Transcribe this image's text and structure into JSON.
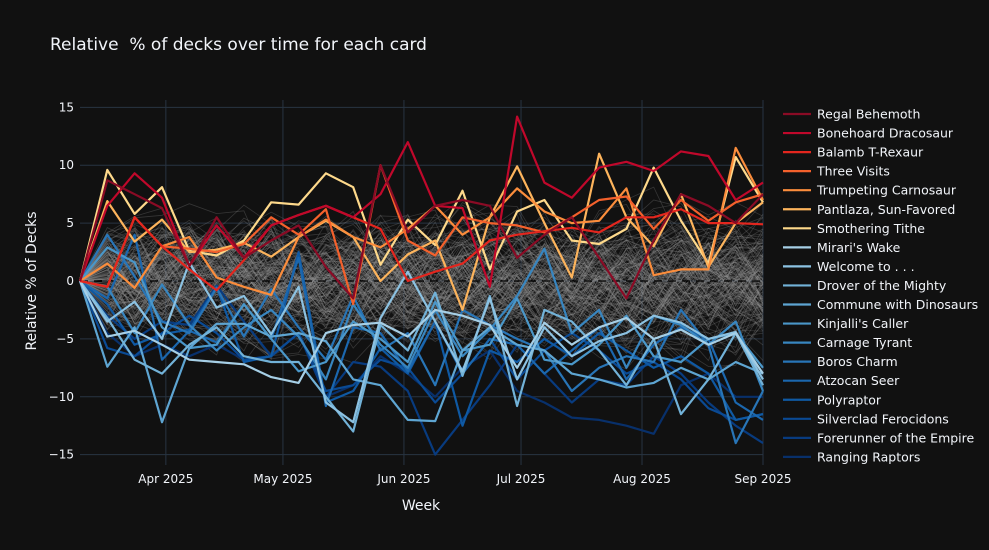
{
  "chart_data": {
    "type": "line",
    "title": "Relative  % of decks over time for each card",
    "xlabel": "Week",
    "ylabel": "Relative % of Decks",
    "ylim": [
      -16.5,
      16.5
    ],
    "xlim": [
      "2025-03-10",
      "2025-09-01"
    ],
    "yticks": [
      -15,
      -10,
      -5,
      0,
      5,
      10,
      15
    ],
    "ytick_labels": [
      "−15",
      "−10",
      "−5",
      "0",
      "5",
      "10",
      "15"
    ],
    "xticks": [
      "2025-04-01",
      "2025-05-01",
      "2025-06-01",
      "2025-07-01",
      "2025-08-01",
      "2025-09-01"
    ],
    "xtick_labels": [
      "Apr 2025",
      "May 2025",
      "Jun 2025",
      "Jul 2025",
      "Aug 2025",
      "Sep 2025"
    ],
    "grid": true,
    "zero_line": "dashed",
    "background_lines": "gray, other cards",
    "legend_placement": "right",
    "x": [
      "2025-03-10",
      "2025-03-17",
      "2025-03-24",
      "2025-03-31",
      "2025-04-07",
      "2025-04-14",
      "2025-04-21",
      "2025-04-28",
      "2025-05-05",
      "2025-05-12",
      "2025-05-19",
      "2025-05-26",
      "2025-06-02",
      "2025-06-09",
      "2025-06-16",
      "2025-06-23",
      "2025-06-30",
      "2025-07-07",
      "2025-07-14",
      "2025-07-21",
      "2025-07-28",
      "2025-08-04",
      "2025-08-11",
      "2025-08-18",
      "2025-08-25",
      "2025-09-01"
    ],
    "series": [
      {
        "name": "Regal Behemoth",
        "color": "#8a0b25",
        "values": [
          0,
          8.7,
          7.5,
          6.3,
          1.3,
          5.5,
          2.0,
          3.5,
          4.8,
          1.2,
          -1.5,
          10.0,
          4.2,
          6.5,
          7.0,
          6.5,
          2.0,
          4.0,
          5.5,
          2.0,
          -1.5,
          3.5,
          7.5,
          6.5,
          5.0,
          7.5
        ]
      },
      {
        "name": "Bonehoard Dracosaur",
        "color": "#c0082b",
        "values": [
          0,
          6.5,
          9.3,
          7.2,
          1.3,
          4.8,
          2.0,
          4.8,
          5.7,
          6.5,
          5.5,
          7.5,
          12.0,
          6.5,
          6.3,
          -0.5,
          14.2,
          8.5,
          7.2,
          9.8,
          10.3,
          9.5,
          11.2,
          10.8,
          7.0,
          8.5
        ]
      },
      {
        "name": "Balamb T-Rexaur",
        "color": "#e3261e",
        "values": [
          0,
          -0.5,
          5.5,
          3.0,
          1.0,
          -0.8,
          1.8,
          4.8,
          5.7,
          6.5,
          5.5,
          4.5,
          0.0,
          0.8,
          1.5,
          3.5,
          4.0,
          4.3,
          4.6,
          4.2,
          5.5,
          5.5,
          6.2,
          5.0,
          5.0,
          4.9
        ]
      },
      {
        "name": "Three Visits",
        "color": "#f4612c",
        "values": [
          0,
          -0.5,
          5.5,
          3.0,
          2.8,
          2.5,
          3.2,
          5.5,
          4.0,
          6.2,
          -2.0,
          10.0,
          3.5,
          2.2,
          5.5,
          5.0,
          4.8,
          4.2,
          5.5,
          7.0,
          7.3,
          4.5,
          7.0,
          5.2,
          6.8,
          7.5
        ]
      },
      {
        "name": "Trumpeting Carnosaur",
        "color": "#fb8d3c",
        "values": [
          0,
          1.5,
          -0.6,
          3.0,
          3.8,
          0.3,
          -0.5,
          -1.2,
          3.8,
          5.3,
          3.8,
          2.9,
          4.5,
          6.5,
          4.0,
          5.5,
          8.0,
          6.0,
          5.0,
          5.2,
          8.0,
          0.5,
          1.0,
          1.0,
          11.5,
          7.0
        ]
      },
      {
        "name": "Pantlaza, Sun-Favored",
        "color": "#fdb45c",
        "values": [
          0,
          6.9,
          3.4,
          5.3,
          2.5,
          2.7,
          3.3,
          2.1,
          3.8,
          5.2,
          3.8,
          0.0,
          2.3,
          3.5,
          -2.5,
          5.5,
          9.9,
          5.0,
          0.3,
          11.0,
          5.5,
          3.0,
          7.5,
          1.2,
          5.0,
          6.8
        ]
      },
      {
        "name": "Smothering Tithe",
        "color": "#fed98b",
        "values": [
          0,
          9.6,
          5.8,
          8.1,
          2.6,
          2.2,
          3.5,
          6.8,
          6.6,
          9.3,
          8.1,
          1.4,
          5.3,
          3.1,
          7.8,
          1.0,
          6.0,
          7.0,
          3.5,
          3.2,
          4.5,
          9.8,
          5.2,
          1.5,
          10.7,
          6.8
        ]
      },
      {
        "name": "Mirari's Wake",
        "color": "#a6cfe6",
        "values": [
          0,
          -4.8,
          -4.3,
          -5.5,
          -6.8,
          -7.0,
          -7.2,
          -8.3,
          -8.8,
          -4.5,
          -3.8,
          -3.6,
          -4.8,
          -2.5,
          -3.0,
          -3.8,
          -7.5,
          -3.6,
          -5.5,
          -4.0,
          -3.2,
          -5.0,
          -4.2,
          -5.5,
          -4.5,
          -8.0
        ]
      },
      {
        "name": "Welcome to . . .",
        "color": "#8cc2e2",
        "values": [
          0,
          -3.5,
          -1.8,
          -5.0,
          1.6,
          -2.3,
          -1.3,
          -4.6,
          -0.5,
          -10.5,
          -12.2,
          -3.2,
          0.8,
          -3.5,
          -7.8,
          -1.5,
          -8.5,
          -4.0,
          -6.5,
          -5.2,
          -4.5,
          -3.0,
          -3.6,
          -5.0,
          -4.4,
          -8.5
        ]
      },
      {
        "name": "Drover of the Mighty",
        "color": "#72b2d8",
        "values": [
          0,
          -3.2,
          -6.8,
          -8.0,
          -5.5,
          -4.0,
          -6.5,
          -7.0,
          -7.0,
          -10.0,
          -13.0,
          -3.8,
          -6.0,
          -1.0,
          -8.2,
          -1.3,
          -10.8,
          -2.5,
          -3.5,
          -6.0,
          -9.0,
          -5.0,
          -11.5,
          -8.5,
          -4.5,
          -9.0
        ]
      },
      {
        "name": "Commune with Dinosaurs",
        "color": "#5ea5d2",
        "values": [
          0,
          -7.4,
          -4.0,
          -12.2,
          -5.8,
          -3.7,
          -3.7,
          -4.8,
          -4.5,
          -5.2,
          -8.5,
          -9.0,
          -12.0,
          -12.1,
          -6.0,
          -4.0,
          -5.5,
          -6.0,
          -8.0,
          -8.5,
          -9.2,
          -8.8,
          -7.5,
          -8.5,
          -7.0,
          -8.0
        ]
      },
      {
        "name": "Kinjalli's Caller",
        "color": "#4a97c9",
        "values": [
          0,
          2.9,
          1.6,
          -4.0,
          -5.8,
          -5.5,
          -2.0,
          -5.0,
          -7.8,
          -7.0,
          -3.5,
          -5.0,
          -7.0,
          -1.8,
          -6.0,
          -5.5,
          -1.5,
          -6.8,
          -7.2,
          -5.5,
          -3.0,
          -6.5,
          -7.0,
          -5.0,
          -4.5,
          -7.5
        ]
      },
      {
        "name": "Carnage Tyrant",
        "color": "#3886c0",
        "values": [
          0,
          -0.5,
          -4.5,
          -0.3,
          -3.8,
          -6.0,
          -4.0,
          -2.5,
          -4.8,
          -8.5,
          -2.0,
          -5.5,
          -7.5,
          -2.5,
          -6.5,
          -4.2,
          -1.3,
          2.8,
          -4.5,
          -2.5,
          -7.5,
          -3.0,
          -3.8,
          -5.5,
          -3.5,
          -9.5
        ]
      },
      {
        "name": "Boros Charm",
        "color": "#2875b7",
        "values": [
          0,
          4.0,
          0.4,
          -3.5,
          -4.5,
          -0.6,
          -4.8,
          -0.7,
          -4.0,
          -6.8,
          -1.3,
          -6.0,
          -4.5,
          -9.0,
          -2.5,
          -3.8,
          -5.0,
          -6.0,
          -9.5,
          -7.5,
          -6.5,
          -7.0,
          -2.5,
          -5.5,
          -14.0,
          -9.5
        ]
      },
      {
        "name": "Atzocan Seer",
        "color": "#1b67ae",
        "values": [
          0,
          -1.5,
          4.0,
          -6.8,
          -4.3,
          -5.3,
          -2.0,
          -5.0,
          2.0,
          -10.8,
          -4.0,
          -4.5,
          -7.8,
          -3.5,
          -8.0,
          -5.0,
          -5.5,
          -8.0,
          -6.0,
          -4.0,
          -8.5,
          -5.5,
          -4.0,
          -5.0,
          -10.5,
          -12.0
        ]
      },
      {
        "name": "Polyraptor",
        "color": "#0f59a3",
        "values": [
          0,
          -2.0,
          -5.5,
          -4.6,
          -4.2,
          -0.5,
          -7.0,
          -6.5,
          2.5,
          -10.5,
          -9.5,
          -5.8,
          -8.0,
          -3.5,
          -12.5,
          -6.0,
          -7.0,
          -5.0,
          -6.5,
          -4.5,
          -6.0,
          -7.5,
          -6.5,
          -8.0,
          -12.0,
          -11.5
        ]
      },
      {
        "name": "Silverclad Ferocidons",
        "color": "#0a4a94",
        "values": [
          0,
          -5.8,
          -6.5,
          -4.5,
          -3.0,
          -4.5,
          -6.8,
          -6.5,
          -4.5,
          -9.5,
          -9.0,
          -6.8,
          -7.5,
          -10.5,
          -8.0,
          -5.0,
          -8.5,
          -6.0,
          -4.5,
          -6.0,
          -8.0,
          -7.0,
          -8.5,
          -11.0,
          -12.0,
          -11.5
        ]
      },
      {
        "name": "Forerunner of the Empire",
        "color": "#083b7f",
        "values": [
          0,
          -3.0,
          -5.0,
          -3.5,
          -3.8,
          -0.4,
          -3.5,
          -6.5,
          -4.5,
          -10.0,
          -7.0,
          -7.4,
          -9.5,
          -15.0,
          -12.0,
          -9.0,
          -5.5,
          -8.0,
          -10.5,
          -8.5,
          -9.0,
          -6.5,
          -8.0,
          -10.5,
          -12.5,
          -14.0
        ]
      },
      {
        "name": "Ranging Raptors",
        "color": "#08306b",
        "values": [
          0,
          -4.5,
          -6.5,
          -5.5,
          -6.5,
          -5.5,
          -6.8,
          -6.5,
          -4.5,
          -10.0,
          -9.0,
          -6.5,
          -8.0,
          -10.0,
          -7.5,
          -6.0,
          -9.5,
          -10.5,
          -11.8,
          -12.0,
          -12.5,
          -13.2,
          -9.0,
          -8.0,
          -10.0,
          -10.0
        ]
      }
    ]
  }
}
